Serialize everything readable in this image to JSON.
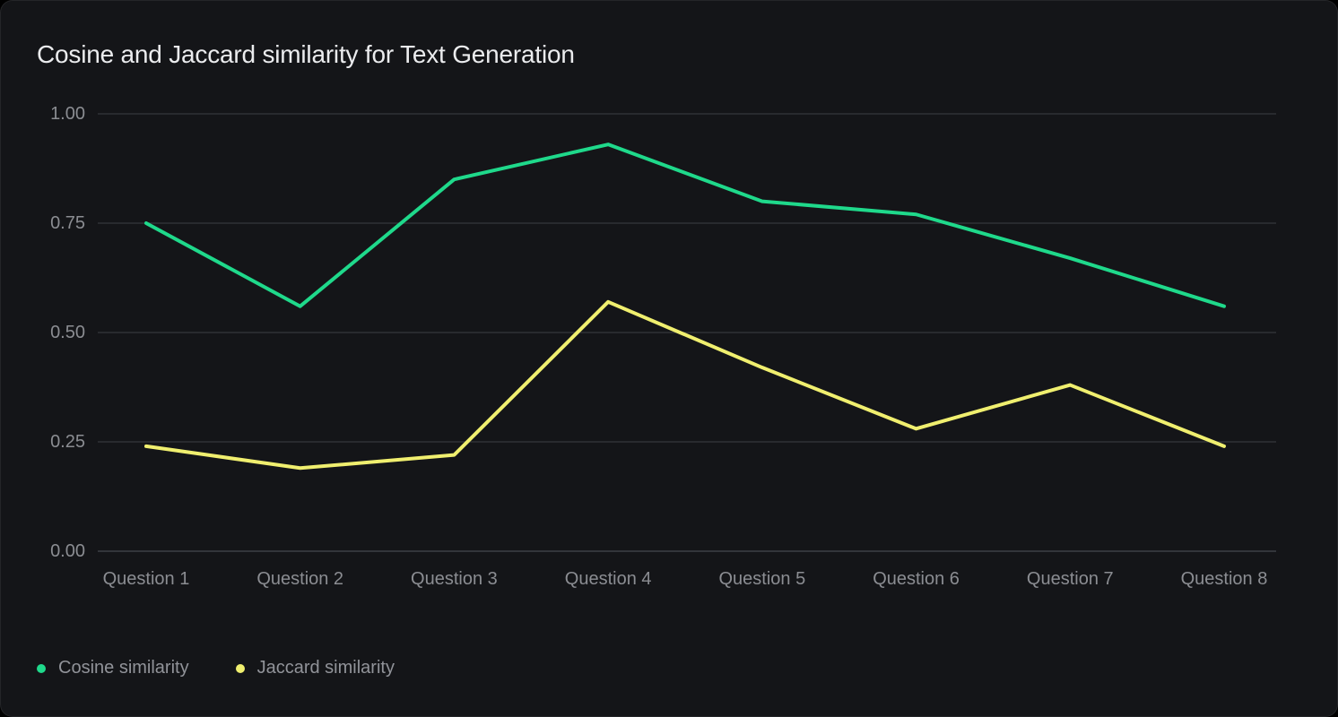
{
  "page": {
    "background": "#000000",
    "card_background": "#141518"
  },
  "chart_data": {
    "type": "line",
    "title": "Cosine and Jaccard similarity for Text Generation",
    "categories": [
      "Question 1",
      "Question 2",
      "Question 3",
      "Question 4",
      "Question 5",
      "Question 6",
      "Question 7",
      "Question 8"
    ],
    "series": [
      {
        "name": "Cosine similarity",
        "color": "#1fd98b",
        "values": [
          0.75,
          0.56,
          0.85,
          0.93,
          0.8,
          0.77,
          0.67,
          0.56
        ]
      },
      {
        "name": "Jaccard similarity",
        "color": "#f0ef6f",
        "values": [
          0.24,
          0.19,
          0.22,
          0.57,
          0.42,
          0.28,
          0.38,
          0.24
        ]
      }
    ],
    "y_ticks": [
      {
        "label": "1.00",
        "value": 1.0
      },
      {
        "label": "0.75",
        "value": 0.75
      },
      {
        "label": "0.50",
        "value": 0.5
      },
      {
        "label": "0.25",
        "value": 0.25
      },
      {
        "label": "0.00",
        "value": 0.0
      }
    ],
    "ylim": [
      0,
      1
    ],
    "xlabel": "",
    "ylabel": "",
    "grid": true,
    "legend_position": "bottom-left",
    "legend": [
      "Cosine similarity",
      "Jaccard similarity"
    ]
  },
  "colors": {
    "grid_line": "#2e3136",
    "baseline": "#3d4045",
    "axis_text": "#8b8d92",
    "title_text": "#ebecee",
    "legend_text": "#919399"
  }
}
